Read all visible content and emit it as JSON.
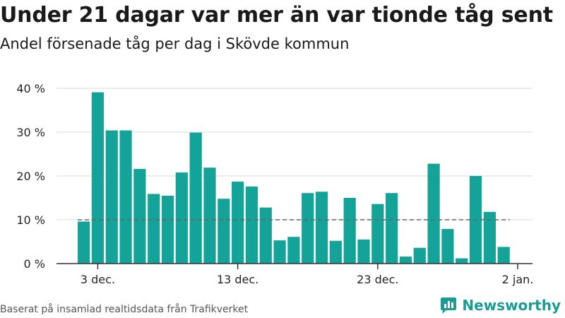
{
  "header": {
    "title": "Under 21 dagar var mer än var tionde tåg sent",
    "subtitle": "Andel försenade tåg per dag i Skövde kommun"
  },
  "footer": {
    "source": "Baserat på insamlad realtidsdata från Trafikverket",
    "brand": "Newsworthy"
  },
  "colors": {
    "bar": "#13a398",
    "reference_line": "#666666",
    "grid": "#d9d9d9",
    "brand": "#1a9c94"
  },
  "chart_data": {
    "type": "bar",
    "title": "Under 21 dagar var mer än var tionde tåg sent",
    "subtitle": "Andel försenade tåg per dag i Skövde kommun",
    "xlabel": "",
    "ylabel": "",
    "ylim": [
      0,
      40
    ],
    "yticks": [
      "0 %",
      "10 %",
      "20 %",
      "30 %",
      "40 %"
    ],
    "x_tick_labels": [
      "3 dec.",
      "13 dec.",
      "23 dec.",
      "2 jan."
    ],
    "grid": true,
    "reference_line": 10,
    "categories": [
      "2 dec.",
      "3 dec.",
      "4 dec.",
      "5 dec.",
      "6 dec.",
      "7 dec.",
      "8 dec.",
      "9 dec.",
      "10 dec.",
      "11 dec.",
      "12 dec.",
      "13 dec.",
      "14 dec.",
      "15 dec.",
      "16 dec.",
      "17 dec.",
      "18 dec.",
      "19 dec.",
      "20 dec.",
      "21 dec.",
      "22 dec.",
      "23 dec.",
      "24 dec.",
      "25 dec.",
      "26 dec.",
      "27 dec.",
      "28 dec.",
      "29 dec.",
      "30 dec.",
      "31 dec.",
      "1 jan."
    ],
    "values": [
      9.6,
      39.1,
      30.4,
      30.4,
      21.6,
      15.9,
      15.5,
      20.8,
      29.9,
      21.9,
      14.8,
      18.7,
      17.6,
      12.8,
      5.3,
      6.1,
      16.1,
      16.4,
      5.2,
      15.0,
      5.5,
      13.6,
      16.1,
      1.6,
      3.6,
      22.8,
      7.9,
      1.2,
      20.0,
      11.8,
      3.8
    ]
  }
}
